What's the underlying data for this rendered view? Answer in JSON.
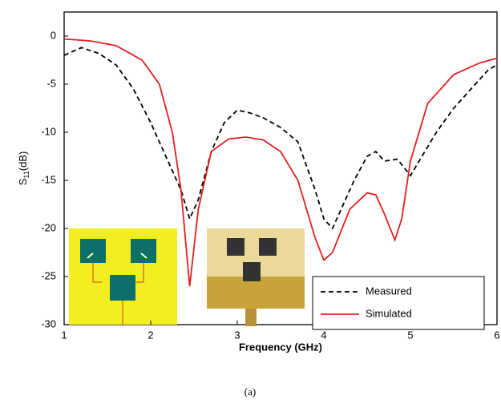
{
  "chart_data": {
    "type": "line",
    "x_label": "Frequency (GHz)",
    "y_label": [
      "S",
      "11",
      "(dB)"
    ],
    "caption": "(a)",
    "xlim": [
      1,
      6
    ],
    "xticks": [
      1,
      2,
      3,
      4,
      5,
      6
    ],
    "ylim": [
      -30,
      2.5
    ],
    "yticks": [
      0,
      -5,
      -10,
      -15,
      -20,
      -25,
      -30
    ],
    "legend": "lower right",
    "series": [
      {
        "name": "Measured",
        "color": "#000000",
        "dash": true,
        "x": [
          1,
          1.2,
          1.4,
          1.6,
          1.8,
          2.0,
          2.2,
          2.35,
          2.45,
          2.55,
          2.7,
          2.85,
          3.0,
          3.15,
          3.3,
          3.5,
          3.7,
          3.9,
          4.0,
          4.1,
          4.2,
          4.35,
          4.5,
          4.6,
          4.7,
          4.85,
          5.0,
          5.1,
          5.3,
          5.5,
          5.7,
          5.9,
          6.0
        ],
        "values": [
          -2,
          -1.2,
          -1.8,
          -3,
          -5.5,
          -9,
          -13,
          -16,
          -19,
          -17,
          -12,
          -9,
          -7.7,
          -8,
          -8.5,
          -9.5,
          -11,
          -16,
          -19,
          -20,
          -18,
          -15,
          -12.5,
          -12,
          -13,
          -12.8,
          -14.5,
          -13,
          -10,
          -7.5,
          -5.5,
          -3.5,
          -3
        ]
      },
      {
        "name": "Simulated",
        "color": "#e02020",
        "dash": false,
        "x": [
          1,
          1.3,
          1.6,
          1.9,
          2.1,
          2.25,
          2.35,
          2.45,
          2.55,
          2.7,
          2.9,
          3.1,
          3.3,
          3.5,
          3.7,
          3.9,
          4.0,
          4.1,
          4.3,
          4.5,
          4.6,
          4.7,
          4.82,
          4.9,
          5.0,
          5.2,
          5.5,
          5.8,
          6.0
        ],
        "values": [
          -0.3,
          -0.5,
          -1,
          -2.5,
          -5,
          -10,
          -16,
          -26,
          -18,
          -12,
          -10.7,
          -10.5,
          -10.8,
          -12,
          -15,
          -21,
          -23.3,
          -22.5,
          -18,
          -16.3,
          -16.5,
          -18.5,
          -21.2,
          -19,
          -13,
          -7,
          -4,
          -2.8,
          -2.3
        ]
      }
    ]
  }
}
